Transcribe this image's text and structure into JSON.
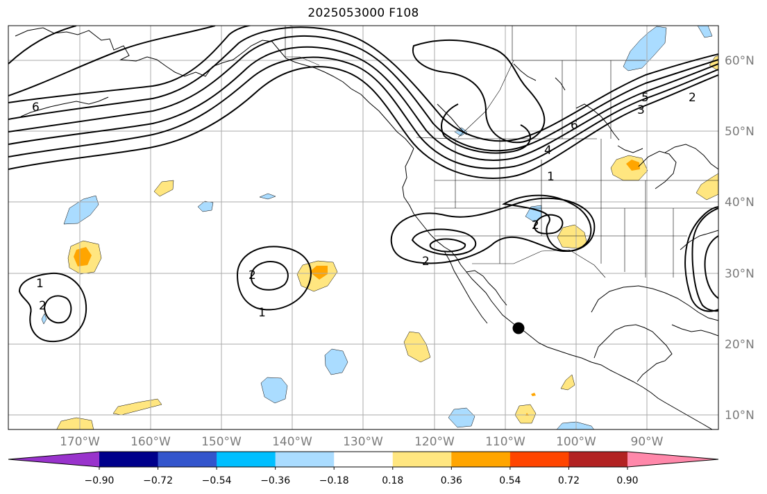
{
  "title": "2025053000 F108",
  "latitude_labels": [
    "60°N",
    "50°N",
    "40°N",
    "30°N",
    "20°N",
    "10°N"
  ],
  "longitude_labels": [
    "170°W",
    "160°W",
    "150°W",
    "140°W",
    "130°W",
    "120°W",
    "110°W",
    "100°W",
    "90°W"
  ],
  "colorbar": {
    "ticks": [
      "−0.90",
      "−0.72",
      "−0.54",
      "−0.36",
      "−0.18",
      "0.18",
      "0.36",
      "0.54",
      "0.72",
      "0.90"
    ],
    "colors": [
      "#9933cc",
      "#00008b",
      "#3355cc",
      "#00bfff",
      "#aadcff",
      "#ffffff",
      "#ffe680",
      "#ffa500",
      "#ff4500",
      "#b22222",
      "#ff88aa"
    ]
  },
  "contour_labels": [
    "1",
    "2",
    "1",
    "2",
    "2",
    "1",
    "2",
    "4",
    "6",
    "5",
    "3",
    "2",
    "6"
  ],
  "colors": {
    "contour": "#000000",
    "coast": "#000000",
    "grid": "#aaaaaa",
    "marker": "#000000"
  }
}
